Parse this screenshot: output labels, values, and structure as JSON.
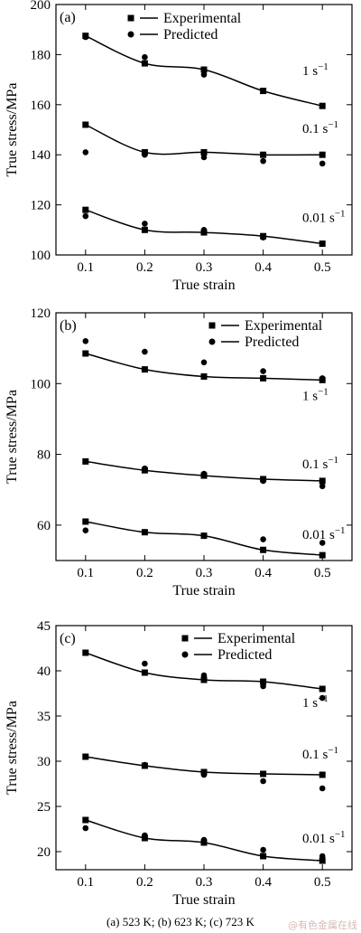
{
  "chart_data": [
    {
      "type": "scatter",
      "panel_label": "(a)",
      "xlabel": "True strain",
      "ylabel": "True stress/MPa",
      "xlim": [
        0.05,
        0.55
      ],
      "ylim": [
        100,
        200
      ],
      "x_ticks": [
        0.1,
        0.2,
        0.3,
        0.4,
        0.5
      ],
      "y_ticks": [
        100,
        120,
        140,
        160,
        180,
        200
      ],
      "legend": {
        "placement": "top",
        "experimental": "Experimental",
        "predicted": "Predicted"
      },
      "x": [
        0.1,
        0.2,
        0.3,
        0.4,
        0.5
      ],
      "series": [
        {
          "rate": "1 s",
          "rate_exp": "−1",
          "experimental": [
            187.5,
            176.5,
            174,
            165.5,
            159.5
          ],
          "predicted": [
            187,
            179,
            172,
            165.5,
            159.5
          ]
        },
        {
          "rate": "0.1 s",
          "rate_exp": "−1",
          "experimental": [
            152,
            141,
            141,
            140,
            140
          ],
          "predicted": [
            141,
            140,
            139,
            137.5,
            136.5
          ]
        },
        {
          "rate": "0.01 s",
          "rate_exp": "−1",
          "experimental": [
            118,
            110,
            109,
            107.5,
            104.5
          ],
          "predicted": [
            115.5,
            112.5,
            110,
            107,
            104.5
          ]
        }
      ]
    },
    {
      "type": "scatter",
      "panel_label": "(b)",
      "xlabel": "True strain",
      "ylabel": "True stress/MPa",
      "xlim": [
        0.05,
        0.55
      ],
      "ylim": [
        50,
        120
      ],
      "x_ticks": [
        0.1,
        0.2,
        0.3,
        0.4,
        0.5
      ],
      "y_ticks": [
        60,
        80,
        100,
        120
      ],
      "legend": {
        "placement": "top-right",
        "experimental": "Experimental",
        "predicted": "Predicted"
      },
      "x": [
        0.1,
        0.2,
        0.3,
        0.4,
        0.5
      ],
      "series": [
        {
          "rate": "1 s",
          "rate_exp": "−1",
          "experimental": [
            108.5,
            104,
            102,
            101.5,
            101
          ],
          "predicted": [
            112,
            109,
            106,
            103.5,
            101.5
          ]
        },
        {
          "rate": "0.1 s",
          "rate_exp": "−1",
          "experimental": [
            78,
            75.5,
            74,
            73,
            72.5
          ],
          "predicted": [
            78,
            76,
            74.5,
            72.5,
            71
          ]
        },
        {
          "rate": "0.01 s",
          "rate_exp": "−1",
          "experimental": [
            61,
            58,
            57,
            53,
            51.5
          ],
          "predicted": [
            58.5,
            58,
            57,
            56,
            55
          ]
        }
      ]
    },
    {
      "type": "scatter",
      "panel_label": "(c)",
      "xlabel": "True strain",
      "ylabel": "True stress/MPa",
      "xlim": [
        0.05,
        0.55
      ],
      "ylim": [
        18,
        45
      ],
      "x_ticks": [
        0.1,
        0.2,
        0.3,
        0.4,
        0.5
      ],
      "y_ticks": [
        20,
        25,
        30,
        35,
        40,
        45
      ],
      "legend": {
        "placement": "top",
        "experimental": "Experimental",
        "predicted": "Predicted"
      },
      "x": [
        0.1,
        0.2,
        0.3,
        0.4,
        0.5
      ],
      "series": [
        {
          "rate": "1 s",
          "rate_exp": "−1",
          "experimental": [
            42,
            39.8,
            39,
            38.8,
            38
          ],
          "predicted": [
            42,
            40.8,
            39.5,
            38.3,
            37
          ]
        },
        {
          "rate": "0.1 s",
          "rate_exp": "−1",
          "experimental": [
            30.5,
            29.5,
            28.8,
            28.6,
            28.5
          ],
          "predicted": [
            30.5,
            29.6,
            28.5,
            27.8,
            27
          ]
        },
        {
          "rate": "0.01 s",
          "rate_exp": "−1",
          "experimental": [
            23.5,
            21.5,
            21,
            19.5,
            19
          ],
          "predicted": [
            22.6,
            21.8,
            21.3,
            20.2,
            19.5
          ]
        }
      ]
    }
  ],
  "caption": "(a) 523 K; (b) 623 K; (c) 723 K",
  "watermark": "@有色金属在线"
}
